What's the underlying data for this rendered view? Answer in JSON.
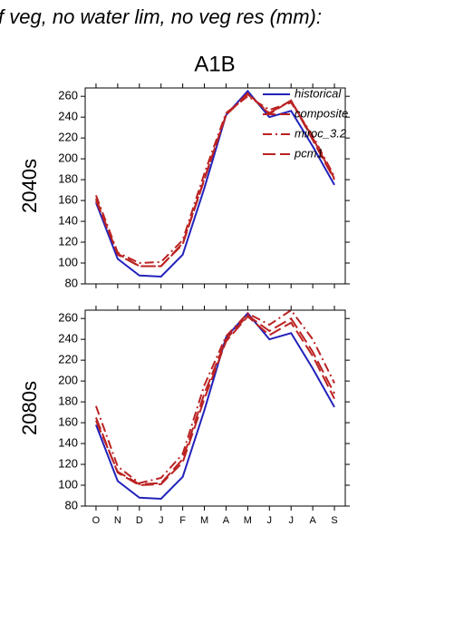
{
  "header": {
    "title": "f veg, no water lim, no veg res (mm):",
    "subtitle": "A1B"
  },
  "chart_data": [
    {
      "type": "line",
      "ylabel": "2040s",
      "categories": [
        "O",
        "N",
        "D",
        "J",
        "F",
        "M",
        "A",
        "M",
        "J",
        "J",
        "A",
        "S"
      ],
      "ylim": [
        80,
        268
      ],
      "yticks": [
        80,
        100,
        120,
        140,
        160,
        180,
        200,
        220,
        240,
        260
      ],
      "legend": "upper right",
      "series": [
        {
          "name": "historical",
          "color": "#2222bb",
          "dash": "solid",
          "values": [
            158,
            104,
            88,
            87,
            108,
            172,
            242,
            265,
            240,
            246,
            212,
            175
          ]
        },
        {
          "name": "composite",
          "color": "#bb2222",
          "dash": "long-dash",
          "values": [
            162,
            108,
            97,
            97,
            118,
            180,
            242,
            263,
            243,
            256,
            218,
            180
          ]
        },
        {
          "name": "miroc_3.2",
          "color": "#bb2222",
          "dash": "dash-dot",
          "values": [
            165,
            110,
            100,
            101,
            122,
            186,
            244,
            260,
            247,
            254,
            222,
            183
          ]
        },
        {
          "name": "pcm1",
          "color": "#bb2222",
          "dash": "long-dash",
          "values": [
            160,
            109,
            97,
            97,
            119,
            181,
            242,
            262,
            244,
            256,
            220,
            181
          ]
        }
      ]
    },
    {
      "type": "line",
      "ylabel": "2080s",
      "categories": [
        "O",
        "N",
        "D",
        "J",
        "F",
        "M",
        "A",
        "M",
        "J",
        "J",
        "A",
        "S"
      ],
      "ylim": [
        80,
        268
      ],
      "yticks": [
        80,
        100,
        120,
        140,
        160,
        180,
        200,
        220,
        240,
        260
      ],
      "series": [
        {
          "color": "#2222bb",
          "dash": "solid",
          "values": [
            158,
            104,
            88,
            87,
            108,
            172,
            242,
            265,
            240,
            246,
            212,
            175
          ]
        },
        {
          "color": "#bb2222",
          "dash": "long-dash",
          "values": [
            162,
            113,
            101,
            102,
            125,
            188,
            240,
            263,
            248,
            260,
            228,
            188
          ]
        },
        {
          "color": "#bb2222",
          "dash": "dash-dot",
          "values": [
            176,
            118,
            102,
            107,
            130,
            196,
            243,
            265,
            254,
            268,
            240,
            198
          ]
        },
        {
          "color": "#bb2222",
          "dash": "long-dash",
          "values": [
            165,
            112,
            100,
            101,
            122,
            183,
            238,
            262,
            244,
            256,
            224,
            183
          ]
        }
      ]
    }
  ]
}
